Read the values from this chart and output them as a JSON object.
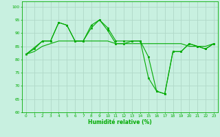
{
  "background_color": "#c8f0e0",
  "grid_color": "#b0d8c8",
  "line_color": "#00aa00",
  "marker_color": "#00aa00",
  "xlabel": "Humidité relative (%)",
  "xlabel_color": "#00aa00",
  "tick_color": "#00aa00",
  "ylim": [
    60,
    102
  ],
  "yticks": [
    60,
    65,
    70,
    75,
    80,
    85,
    90,
    95,
    100
  ],
  "xlim": [
    -0.5,
    23.5
  ],
  "xticks": [
    0,
    1,
    2,
    3,
    4,
    5,
    6,
    7,
    8,
    9,
    10,
    11,
    12,
    13,
    14,
    15,
    16,
    17,
    18,
    19,
    20,
    21,
    22,
    23
  ],
  "series1_x": [
    0,
    1,
    2,
    3,
    4,
    5,
    6,
    7,
    8,
    9,
    10,
    11,
    12,
    13,
    14,
    15,
    16,
    17,
    18,
    19,
    20,
    21,
    22,
    23
  ],
  "series1_y": [
    82,
    84,
    87,
    87,
    94,
    93,
    87,
    87,
    92,
    95,
    91,
    86,
    86,
    87,
    87,
    81,
    68,
    67,
    83,
    83,
    86,
    85,
    84,
    86
  ],
  "series2_x": [
    0,
    1,
    2,
    3,
    4,
    5,
    6,
    7,
    8,
    9,
    10,
    11,
    12,
    13,
    14,
    15,
    16,
    17,
    18,
    19,
    20,
    21,
    22,
    23
  ],
  "series2_y": [
    82,
    83,
    85,
    86,
    87,
    87,
    87,
    87,
    87,
    87,
    87,
    86,
    86,
    86,
    86,
    86,
    86,
    86,
    86,
    86,
    85,
    85,
    85,
    86
  ],
  "series3_x": [
    0,
    2,
    3,
    4,
    5,
    6,
    7,
    8,
    9,
    10,
    11,
    12,
    13,
    14,
    15,
    16,
    17,
    18,
    19,
    20,
    21,
    22,
    23
  ],
  "series3_y": [
    82,
    87,
    87,
    94,
    93,
    87,
    87,
    93,
    95,
    92,
    87,
    87,
    87,
    87,
    73,
    68,
    67,
    83,
    83,
    86,
    85,
    84,
    86
  ]
}
